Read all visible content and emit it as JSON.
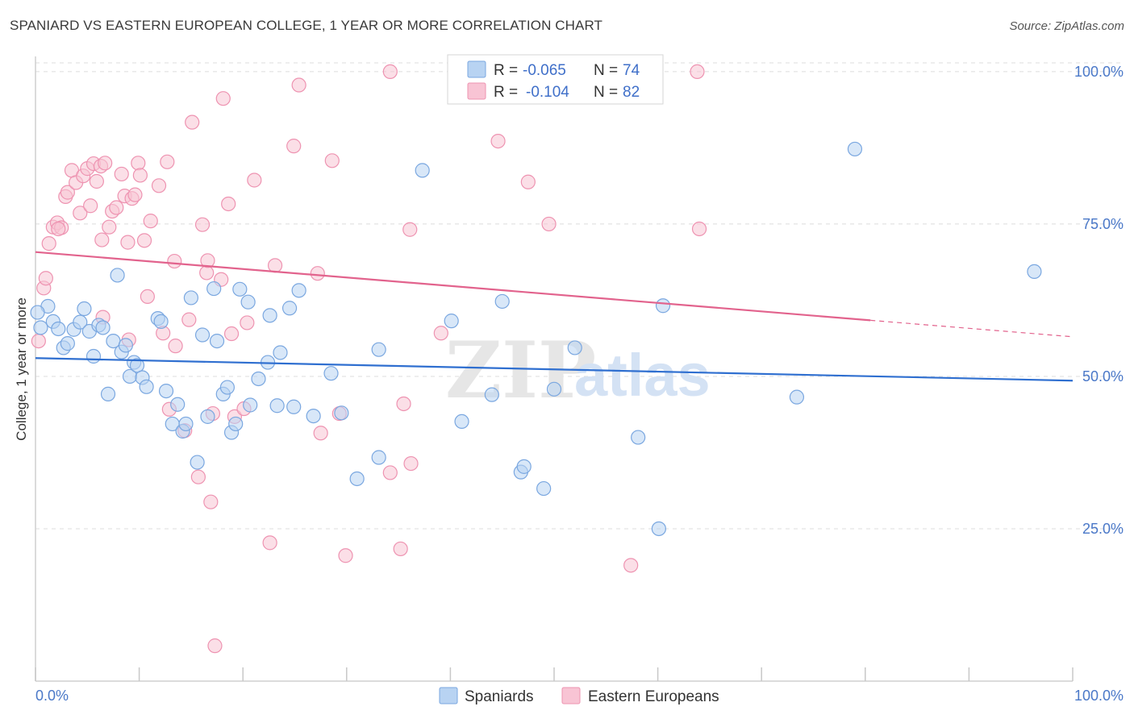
{
  "title": "SPANIARD VS EASTERN EUROPEAN COLLEGE, 1 YEAR OR MORE CORRELATION CHART",
  "source": "Source: ZipAtlas.com",
  "watermark": {
    "zip": "ZIP",
    "atlas": "atlas"
  },
  "colors": {
    "blue_fill": "#b8d3f2",
    "blue_stroke": "#7aa7e0",
    "blue_line": "#2f6fd0",
    "pink_fill": "#f8c4d4",
    "pink_stroke": "#ee93b1",
    "pink_line": "#e2638d",
    "grid": "#dcdcdc",
    "axis_text": "#4a78c8"
  },
  "legend": {
    "r_label": "R =",
    "n_label": "N =",
    "blue": {
      "r": "-0.065",
      "n": "74"
    },
    "pink": {
      "r": "-0.104",
      "n": "82"
    }
  },
  "bottom_legend": {
    "blue": "Spaniards",
    "pink": "Eastern Europeans"
  },
  "chart_data": {
    "type": "scatter",
    "xlabel": "",
    "ylabel": "College, 1 year or more",
    "xlim": [
      0,
      100
    ],
    "ylim": [
      0,
      102.5
    ],
    "x_tick_labels": [
      "0.0%",
      "100.0%"
    ],
    "y_ticks": [
      25,
      50,
      75,
      100
    ],
    "y_tick_labels": [
      "25.0%",
      "50.0%",
      "75.0%",
      "100.0%"
    ],
    "series": [
      {
        "name": "Spaniards",
        "color": "blue",
        "trend": {
          "x0": 0,
          "y0": 53.0,
          "x1": 100,
          "y1": 49.3
        },
        "points": [
          [
            0.5,
            58
          ],
          [
            1.2,
            61.5
          ],
          [
            1.7,
            59
          ],
          [
            2.2,
            57.8
          ],
          [
            2.7,
            54.7
          ],
          [
            3.1,
            55.4
          ],
          [
            3.7,
            57.7
          ],
          [
            4.3,
            58.9
          ],
          [
            4.7,
            61.1
          ],
          [
            5.2,
            57.4
          ],
          [
            5.6,
            53.3
          ],
          [
            6.1,
            58.4
          ],
          [
            6.5,
            58
          ],
          [
            7.0,
            47.1
          ],
          [
            7.5,
            55.8
          ],
          [
            7.9,
            66.6
          ],
          [
            8.3,
            54
          ],
          [
            8.7,
            55.1
          ],
          [
            9.1,
            50
          ],
          [
            9.5,
            52.3
          ],
          [
            9.8,
            51.8
          ],
          [
            10.3,
            49.8
          ],
          [
            10.7,
            48.3
          ],
          [
            11.8,
            59.5
          ],
          [
            12.1,
            59
          ],
          [
            12.6,
            47.6
          ],
          [
            13.2,
            42.2
          ],
          [
            13.7,
            45.4
          ],
          [
            14.2,
            41
          ],
          [
            14.5,
            42.2
          ],
          [
            15.0,
            62.9
          ],
          [
            15.6,
            35.9
          ],
          [
            16.1,
            56.8
          ],
          [
            16.6,
            43.4
          ],
          [
            17.2,
            64.4
          ],
          [
            17.5,
            55.8
          ],
          [
            18.1,
            47.1
          ],
          [
            18.5,
            48.2
          ],
          [
            18.9,
            40.8
          ],
          [
            19.3,
            42.2
          ],
          [
            19.7,
            64.3
          ],
          [
            20.5,
            62.2
          ],
          [
            20.7,
            45.3
          ],
          [
            21.5,
            49.6
          ],
          [
            22.4,
            52.3
          ],
          [
            22.6,
            60
          ],
          [
            23.3,
            45.2
          ],
          [
            23.6,
            53.9
          ],
          [
            24.5,
            61.2
          ],
          [
            24.9,
            45
          ],
          [
            25.4,
            64.1
          ],
          [
            26.8,
            43.5
          ],
          [
            28.5,
            50.5
          ],
          [
            29.5,
            44
          ],
          [
            31.0,
            33.2
          ],
          [
            33.1,
            36.7
          ],
          [
            33.1,
            54.4
          ],
          [
            37.3,
            83.8
          ],
          [
            40.1,
            59.1
          ],
          [
            41.1,
            42.6
          ],
          [
            44.0,
            47
          ],
          [
            45.0,
            62.3
          ],
          [
            46.8,
            34.3
          ],
          [
            47.1,
            35.2
          ],
          [
            49.0,
            31.6
          ],
          [
            50.0,
            47.9
          ],
          [
            52.0,
            54.7
          ],
          [
            58.1,
            40
          ],
          [
            60.1,
            25
          ],
          [
            60.5,
            61.6
          ],
          [
            73.4,
            46.6
          ],
          [
            79.0,
            87.3
          ],
          [
            96.3,
            67.2
          ],
          [
            0.2,
            60.5
          ]
        ]
      },
      {
        "name": "Eastern Europeans",
        "color": "pink",
        "trend": {
          "x0": 0,
          "y0": 70.4,
          "x1": 80.5,
          "y1": 59.2,
          "dash_x1": 100,
          "dash_y1": 56.5
        },
        "points": [
          [
            0.3,
            55.8
          ],
          [
            0.8,
            64.5
          ],
          [
            1.0,
            66.1
          ],
          [
            1.3,
            71.8
          ],
          [
            1.7,
            74.5
          ],
          [
            2.1,
            75.2
          ],
          [
            2.5,
            74.4
          ],
          [
            2.9,
            79.5
          ],
          [
            3.1,
            80.2
          ],
          [
            3.5,
            83.8
          ],
          [
            3.9,
            81.8
          ],
          [
            4.3,
            76.8
          ],
          [
            4.6,
            82.9
          ],
          [
            5.0,
            84.1
          ],
          [
            5.3,
            78
          ],
          [
            5.6,
            84.9
          ],
          [
            5.9,
            82
          ],
          [
            6.3,
            84.5
          ],
          [
            6.4,
            72.4
          ],
          [
            6.7,
            85
          ],
          [
            7.1,
            74.5
          ],
          [
            7.4,
            77.1
          ],
          [
            7.8,
            77.7
          ],
          [
            8.3,
            83.2
          ],
          [
            8.6,
            79.6
          ],
          [
            8.9,
            72
          ],
          [
            9.3,
            79.2
          ],
          [
            9.6,
            79.8
          ],
          [
            9.9,
            85
          ],
          [
            10.1,
            83
          ],
          [
            10.5,
            72.3
          ],
          [
            10.8,
            63.1
          ],
          [
            11.1,
            75.5
          ],
          [
            11.9,
            81.3
          ],
          [
            12.3,
            57.1
          ],
          [
            12.7,
            85.2
          ],
          [
            12.9,
            44.6
          ],
          [
            13.4,
            68.9
          ],
          [
            14.4,
            41.1
          ],
          [
            14.8,
            59.3
          ],
          [
            15.1,
            91.7
          ],
          [
            15.7,
            33.5
          ],
          [
            16.1,
            74.9
          ],
          [
            16.5,
            67
          ],
          [
            16.9,
            29.4
          ],
          [
            17.1,
            43.9
          ],
          [
            17.3,
            5.8
          ],
          [
            17.9,
            65.9
          ],
          [
            18.1,
            95.6
          ],
          [
            18.6,
            78.3
          ],
          [
            18.9,
            57
          ],
          [
            19.2,
            43.4
          ],
          [
            20.1,
            44.7
          ],
          [
            20.4,
            58.8
          ],
          [
            21.1,
            82.2
          ],
          [
            22.6,
            22.7
          ],
          [
            23.1,
            68.2
          ],
          [
            24.9,
            87.8
          ],
          [
            25.4,
            97.8
          ],
          [
            27.2,
            66.9
          ],
          [
            27.5,
            40.7
          ],
          [
            28.6,
            85.4
          ],
          [
            29.3,
            43.9
          ],
          [
            29.9,
            20.6
          ],
          [
            34.2,
            100
          ],
          [
            34.2,
            34.2
          ],
          [
            35.2,
            21.7
          ],
          [
            35.5,
            45.5
          ],
          [
            36.1,
            74.1
          ],
          [
            36.2,
            35.7
          ],
          [
            39.1,
            57.1
          ],
          [
            44.6,
            88.6
          ],
          [
            47.5,
            81.9
          ],
          [
            49.5,
            75
          ],
          [
            57.4,
            19
          ],
          [
            63.8,
            100
          ],
          [
            64.0,
            74.2
          ],
          [
            13.5,
            55
          ],
          [
            6.5,
            59.7
          ],
          [
            9.0,
            56
          ],
          [
            16.6,
            69
          ],
          [
            2.2,
            74.2
          ]
        ]
      }
    ]
  }
}
